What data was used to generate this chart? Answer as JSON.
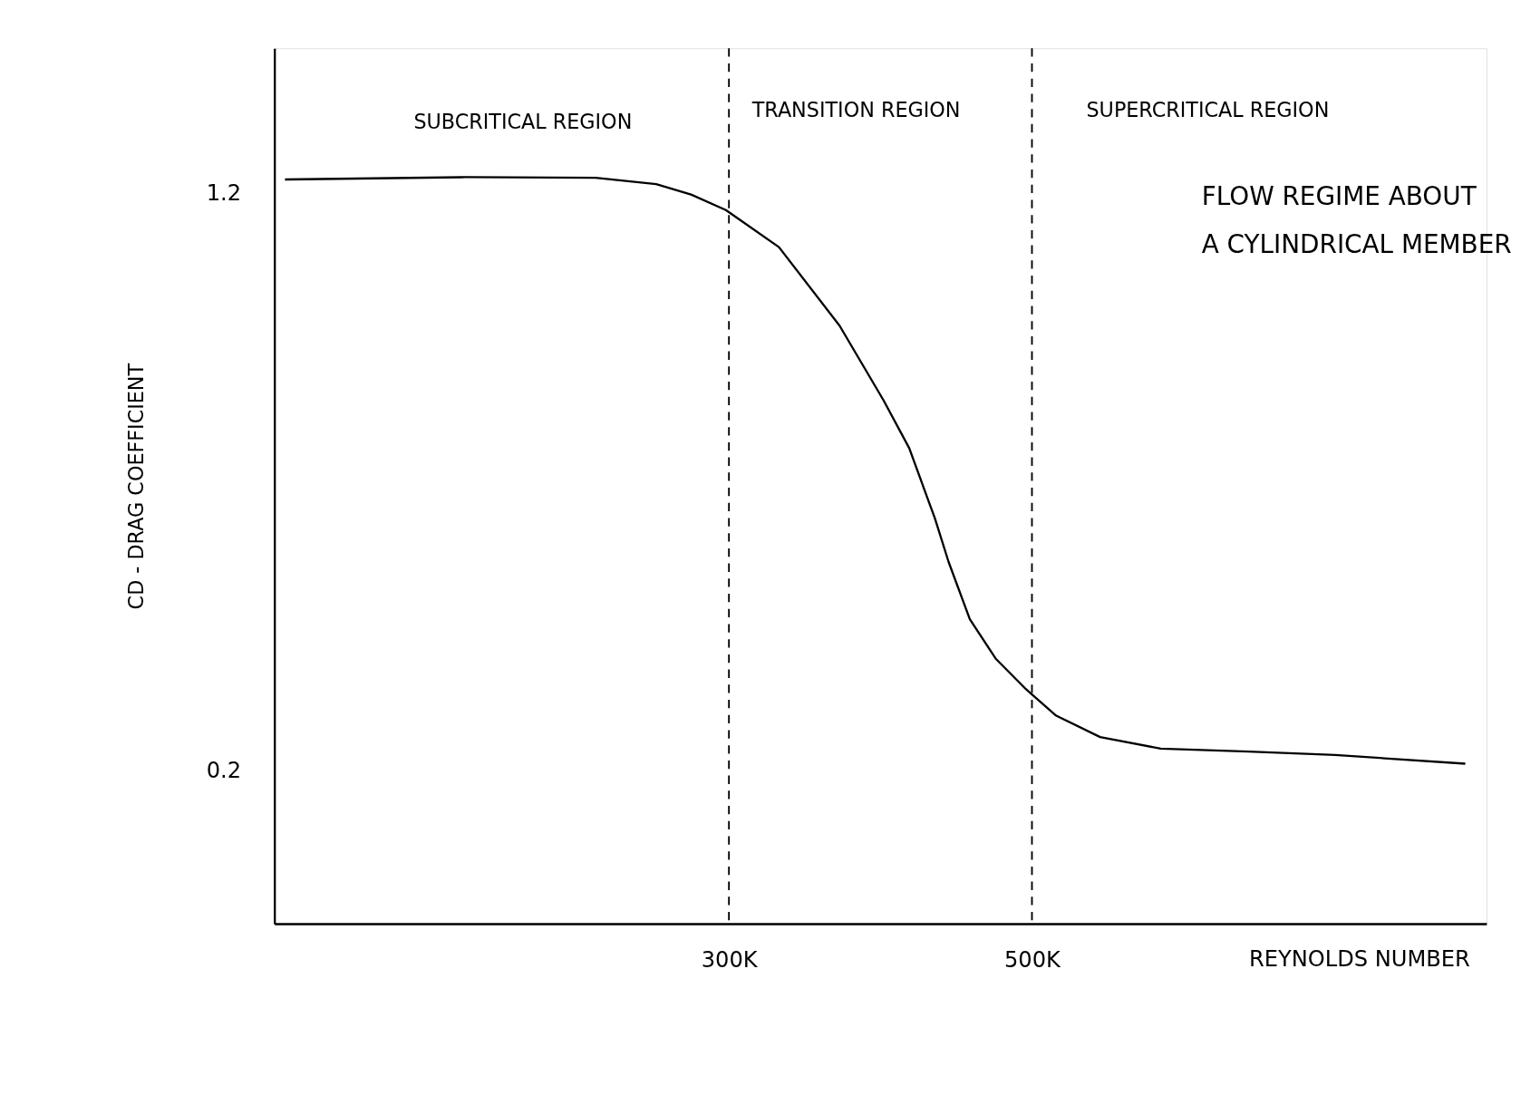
{
  "chart_data": {
    "type": "line",
    "xlabel": "REYNOLDS NUMBER",
    "ylabel": "CD - DRAG COEFFICIENT",
    "x": [
      7000,
      126000,
      212000,
      252000,
      275000,
      298000,
      333000,
      373000,
      402000,
      419000,
      436000,
      445000,
      459000,
      476000,
      496000,
      516000,
      545000,
      585000,
      643000,
      700000,
      786000
    ],
    "series": [
      {
        "color": "#000000",
        "values": [
          1.223,
          1.227,
          1.226,
          1.215,
          1.197,
          1.17,
          1.106,
          0.97,
          0.841,
          0.758,
          0.636,
          0.561,
          0.462,
          0.394,
          0.341,
          0.295,
          0.258,
          0.238,
          0.233,
          0.227,
          0.212
        ]
      }
    ],
    "xlim": [
      0,
      800000
    ],
    "ylim": [
      -0.065,
      1.45
    ],
    "xticks": [
      {
        "value": 300000,
        "label": "300K"
      },
      {
        "value": 500000,
        "label": "500K"
      }
    ],
    "yticks": [
      {
        "value": 1.2,
        "label": "1.2"
      },
      {
        "value": 0.2,
        "label": "0.2"
      }
    ],
    "ref_lines": [
      {
        "axis": "x",
        "value": 300000,
        "line_style": "dashed"
      },
      {
        "axis": "x",
        "value": 500000,
        "line_style": "dashed"
      }
    ],
    "annotations": [
      "SUBCRITICAL REGION",
      "TRANSITION REGION",
      "SUPERCRITICAL REGION",
      "FLOW REGIME ABOUT",
      "A CYLINDRICAL MEMBER"
    ],
    "grid": false,
    "marker": "none",
    "line_style": "solid"
  }
}
